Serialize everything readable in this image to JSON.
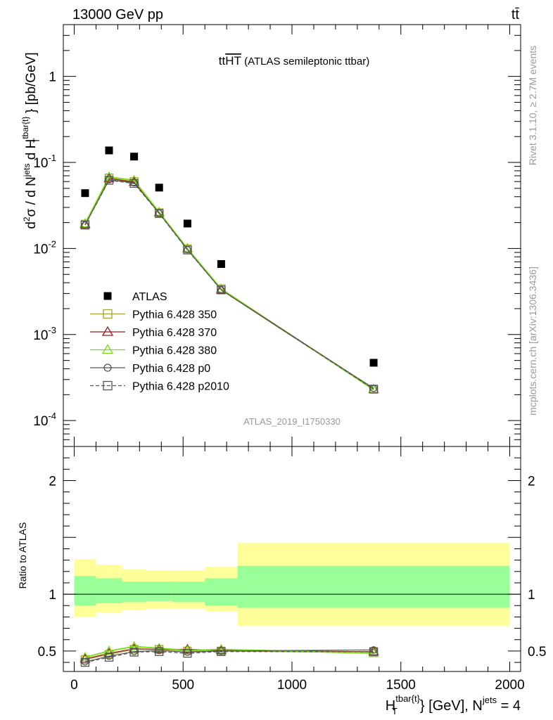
{
  "header": {
    "energy_label": "13000 GeV pp",
    "process_label": "tt̄"
  },
  "side_labels": {
    "rivet": "Rivet 3.1.10, ≥ 2.7M events",
    "mcplots": "mcplots.cern.ch [arXiv:1306.3436]"
  },
  "chart_data": [
    {
      "type": "line",
      "panel": "main",
      "title": "ttHT (ATLAS semileptonic ttbar)",
      "title_prefix": "tt",
      "title_overlined": "HT",
      "title_suffix": " (ATLAS semileptonic ttbar)",
      "watermark": "ATLAS_2019_I1750330",
      "ylabel": "d²σ / d N^jets d H_T^tbar{t} [pb/GeV]",
      "yscale": "log",
      "ylim": [
        5e-05,
        4
      ],
      "xlim": [
        -50,
        2050
      ],
      "y_ticks": [
        {
          "value": 1,
          "label": "1"
        },
        {
          "value": 0.1,
          "label": "10^-1"
        },
        {
          "value": 0.01,
          "label": "10^-2"
        },
        {
          "value": 0.001,
          "label": "10^-3"
        },
        {
          "value": 0.0001,
          "label": "10^-4"
        }
      ],
      "legend_position": "left-middle",
      "atlas": {
        "name": "ATLAS",
        "x": [
          50,
          160,
          275,
          390,
          520,
          675,
          1375
        ],
        "y": [
          0.044,
          0.138,
          0.117,
          0.051,
          0.0195,
          0.0066,
          0.00047
        ]
      },
      "series": [
        {
          "name": "Pythia 6.428 350",
          "color": "#a0a030",
          "marker": "square-open",
          "dash": "solid",
          "x": [
            50,
            160,
            275,
            390,
            520,
            675,
            1375
          ],
          "y": [
            0.0192,
            0.066,
            0.06,
            0.026,
            0.0099,
            0.0034,
            0.000232
          ]
        },
        {
          "name": "Pythia 6.428 370",
          "color": "#9b1b1b",
          "marker": "triangle-open",
          "dash": "solid",
          "x": [
            50,
            160,
            275,
            390,
            520,
            675,
            1375
          ],
          "y": [
            0.019,
            0.065,
            0.059,
            0.0262,
            0.01,
            0.0033,
            0.00023
          ]
        },
        {
          "name": "Pythia 6.428 380",
          "color": "#77dd11",
          "marker": "triangle-open",
          "dash": "solid",
          "x": [
            50,
            160,
            275,
            390,
            520,
            675,
            1375
          ],
          "y": [
            0.0195,
            0.068,
            0.062,
            0.0265,
            0.01,
            0.0034,
            0.000228
          ]
        },
        {
          "name": "Pythia 6.428 p0",
          "color": "#555555",
          "marker": "circle-open",
          "dash": "solid",
          "x": [
            50,
            160,
            275,
            390,
            520,
            675,
            1375
          ],
          "y": [
            0.0188,
            0.063,
            0.058,
            0.0258,
            0.0097,
            0.0033,
            0.000237
          ]
        },
        {
          "name": "Pythia 6.428 p2010",
          "color": "#555555",
          "marker": "square-open",
          "dash": "dashed",
          "x": [
            50,
            160,
            275,
            390,
            520,
            675,
            1375
          ],
          "y": [
            0.0187,
            0.062,
            0.057,
            0.0255,
            0.0096,
            0.0033,
            0.000232
          ]
        }
      ]
    },
    {
      "type": "line",
      "panel": "ratio",
      "ylabel": "Ratio to ATLAS",
      "xlabel": "H_T^tbar{t} [GeV], N^jets = 4",
      "xlim": [
        -50,
        2050
      ],
      "ylim": [
        0.32,
        2.3
      ],
      "x_ticks": [
        0,
        500,
        1000,
        1500,
        2000
      ],
      "y_ticks": [
        0.5,
        1,
        2
      ],
      "bands": [
        {
          "x0": 0,
          "x1": 100,
          "inner": [
            0.9,
            1.16
          ],
          "outer": [
            0.8,
            1.31
          ]
        },
        {
          "x0": 100,
          "x1": 220,
          "inner": [
            0.92,
            1.14
          ],
          "outer": [
            0.84,
            1.26
          ]
        },
        {
          "x0": 220,
          "x1": 330,
          "inner": [
            0.93,
            1.11
          ],
          "outer": [
            0.86,
            1.22
          ]
        },
        {
          "x0": 330,
          "x1": 450,
          "inner": [
            0.94,
            1.11
          ],
          "outer": [
            0.87,
            1.21
          ]
        },
        {
          "x0": 450,
          "x1": 600,
          "inner": [
            0.93,
            1.11
          ],
          "outer": [
            0.87,
            1.21
          ]
        },
        {
          "x0": 600,
          "x1": 750,
          "inner": [
            0.9,
            1.14
          ],
          "outer": [
            0.85,
            1.24
          ]
        },
        {
          "x0": 750,
          "x1": 2000,
          "inner": [
            0.88,
            1.25
          ],
          "outer": [
            0.72,
            1.45
          ]
        }
      ],
      "series": [
        {
          "name": "Pythia 6.428 350",
          "color": "#a0a030",
          "marker": "square-open",
          "dash": "solid",
          "x": [
            50,
            160,
            275,
            390,
            520,
            675,
            1375
          ],
          "y": [
            0.425,
            0.47,
            0.515,
            0.515,
            0.5,
            0.5,
            0.485
          ]
        },
        {
          "name": "Pythia 6.428 370",
          "color": "#9b1b1b",
          "marker": "triangle-open",
          "dash": "solid",
          "x": [
            50,
            160,
            275,
            390,
            520,
            675,
            1375
          ],
          "y": [
            0.43,
            0.48,
            0.52,
            0.515,
            0.515,
            0.505,
            0.495
          ]
        },
        {
          "name": "Pythia 6.428 380",
          "color": "#77dd11",
          "marker": "triangle-open",
          "dash": "solid",
          "x": [
            50,
            160,
            275,
            390,
            520,
            675,
            1375
          ],
          "y": [
            0.445,
            0.5,
            0.54,
            0.525,
            0.505,
            0.515,
            0.48
          ]
        },
        {
          "name": "Pythia 6.428 p0",
          "color": "#555555",
          "marker": "circle-open",
          "dash": "solid",
          "x": [
            50,
            160,
            275,
            390,
            520,
            675,
            1375
          ],
          "y": [
            0.405,
            0.455,
            0.495,
            0.505,
            0.49,
            0.5,
            0.51
          ]
        },
        {
          "name": "Pythia 6.428 p2010",
          "color": "#555555",
          "marker": "square-open",
          "dash": "dashed",
          "x": [
            50,
            160,
            275,
            390,
            520,
            675,
            1375
          ],
          "y": [
            0.4,
            0.445,
            0.49,
            0.495,
            0.48,
            0.495,
            0.495
          ]
        }
      ]
    }
  ]
}
